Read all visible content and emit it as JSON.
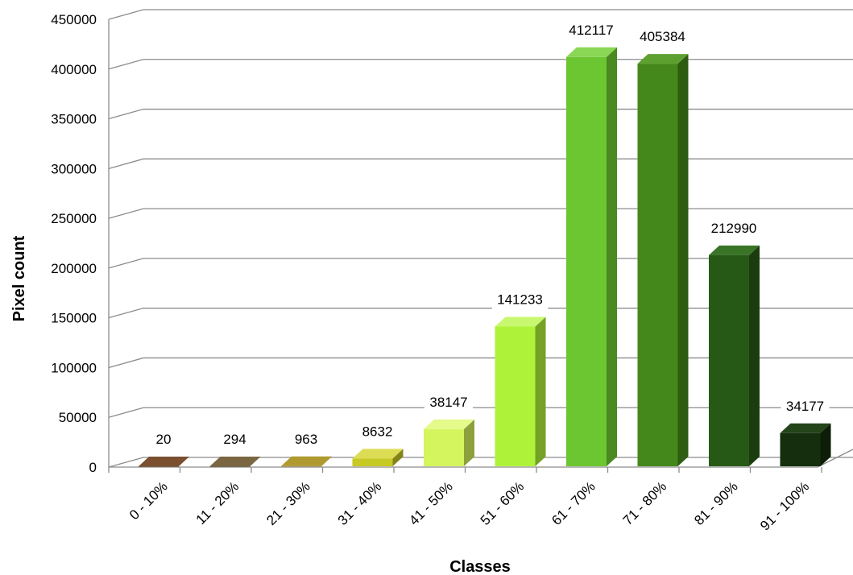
{
  "chart_data": {
    "type": "bar",
    "title": "",
    "xlabel": "Classes",
    "ylabel": "Pixel count",
    "ylim": [
      0,
      450000
    ],
    "yticks": [
      0,
      50000,
      100000,
      150000,
      200000,
      250000,
      300000,
      350000,
      400000,
      450000
    ],
    "grid": true,
    "three_d": true,
    "categories": [
      "0 - 10%",
      "11 - 20%",
      "21 - 30%",
      "31 - 40%",
      "41 - 50%",
      "51 - 60%",
      "61 - 70%",
      "71 - 80%",
      "81 - 90%",
      "91 - 100%"
    ],
    "values": [
      20,
      294,
      963,
      8632,
      38147,
      141233,
      412117,
      405384,
      212990,
      34177
    ],
    "data_labels": [
      "20",
      "294",
      "963",
      "8632",
      "38147",
      "141233",
      "412117",
      "405384",
      "212990",
      "34177"
    ],
    "colors": [
      "#5c3a1a",
      "#5a4a2a",
      "#8f7a12",
      "#c7c925",
      "#d4f55d",
      "#aef33a",
      "#6cc631",
      "#44871a",
      "#275916",
      "#152e0d"
    ],
    "side_colors": [
      "#3d2511",
      "#3b301b",
      "#5e500b",
      "#838418",
      "#8ca13c",
      "#74a126",
      "#4a8a21",
      "#2e5c11",
      "#1a3c0e",
      "#0d1e08"
    ],
    "top_colors": [
      "#7a5030",
      "#7a6640",
      "#b09a30",
      "#dcdd55",
      "#e4fa8a",
      "#c8f870",
      "#8ad655",
      "#5ea030",
      "#3a7426",
      "#24441a"
    ]
  }
}
